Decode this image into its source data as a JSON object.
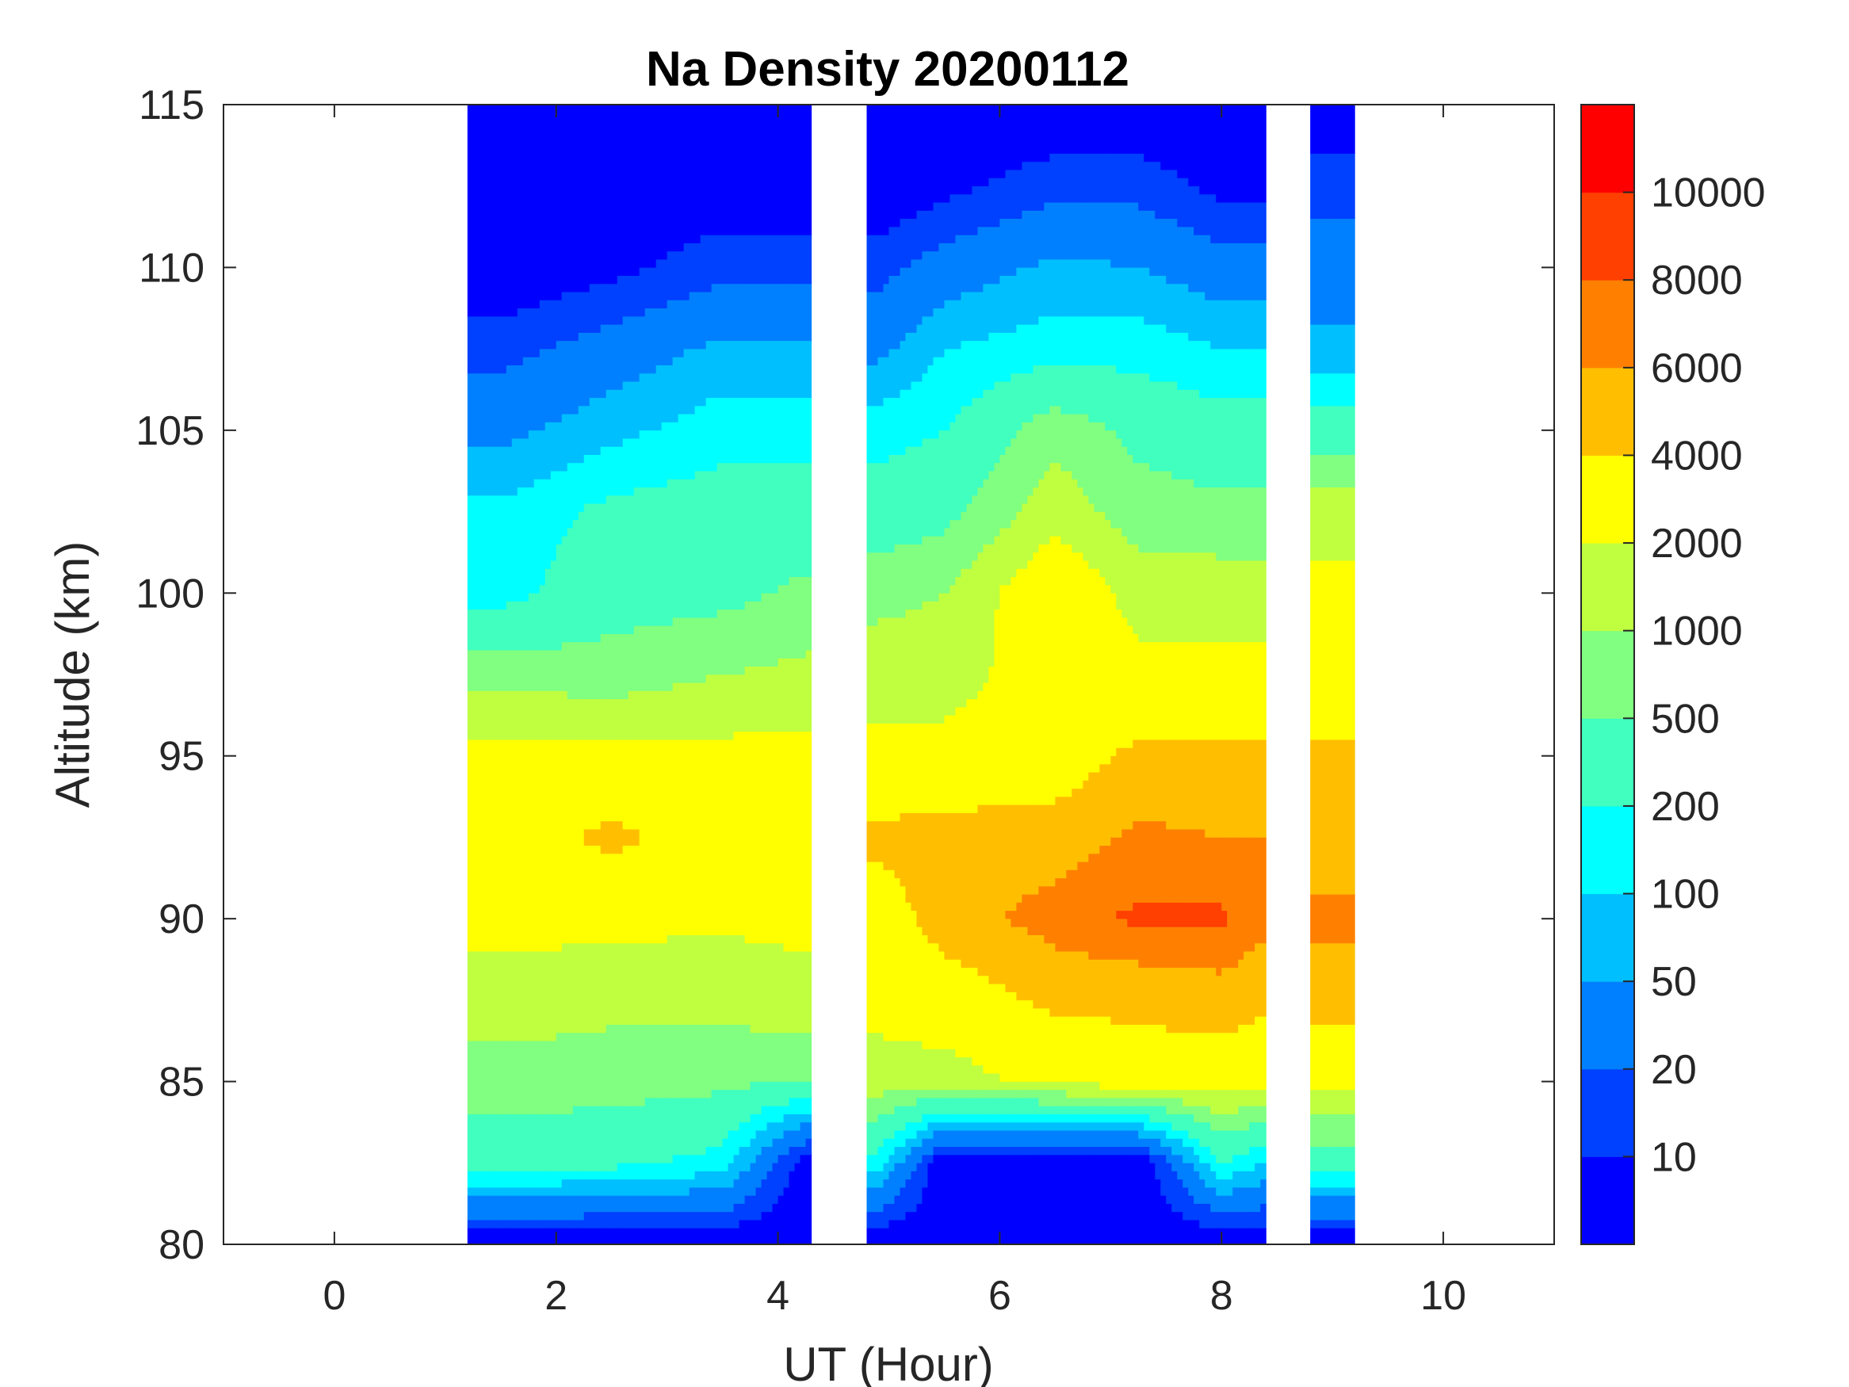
{
  "chart_data": {
    "type": "heatmap",
    "subtype": "filled-contour",
    "title": "Na Density 20200112",
    "xlabel": "UT (Hour)",
    "ylabel": "Altitude (km)",
    "xlim": [
      -1,
      11
    ],
    "ylim": [
      80,
      115
    ],
    "xticks": [
      0,
      2,
      4,
      6,
      8,
      10
    ],
    "yticks": [
      80,
      85,
      90,
      95,
      100,
      105,
      110,
      115
    ],
    "colorbar": {
      "levels": [
        10,
        20,
        50,
        100,
        200,
        500,
        1000,
        2000,
        4000,
        6000,
        8000,
        10000
      ],
      "tick_labels": [
        "10",
        "20",
        "50",
        "100",
        "200",
        "500",
        "1000",
        "2000",
        "4000",
        "6000",
        "8000",
        "10000"
      ],
      "colors": [
        "#0000FF",
        "#0040FF",
        "#0080FF",
        "#00BFFF",
        "#00FFFF",
        "#40FFBF",
        "#80FF80",
        "#BFFF40",
        "#FFFF00",
        "#FFBF00",
        "#FF8000",
        "#FF4000",
        "#FF0000"
      ]
    },
    "altitudes": [
      80,
      82.5,
      85,
      87.5,
      90,
      92.5,
      95,
      97.5,
      100,
      102.5,
      105,
      107.5,
      110,
      112.5,
      115
    ],
    "segments": [
      {
        "times": [
          1.2,
          1.5,
          2.5,
          3.5,
          4.3
        ],
        "density": [
          [
            5,
            300,
            700,
            1500,
            2500,
            3000,
            2500,
            800,
            150,
            120,
            40,
            15,
            5,
            5,
            5
          ],
          [
            5,
            300,
            700,
            1500,
            2500,
            3000,
            2500,
            800,
            150,
            120,
            40,
            15,
            5,
            5,
            5
          ],
          [
            5,
            250,
            700,
            1200,
            2500,
            4500,
            2500,
            700,
            350,
            250,
            80,
            30,
            8,
            5,
            5
          ],
          [
            5,
            150,
            600,
            1300,
            2200,
            3000,
            2500,
            1000,
            400,
            300,
            150,
            60,
            15,
            6,
            5
          ],
          [
            5,
            5,
            500,
            1500,
            2500,
            3000,
            2500,
            1200,
            600,
            300,
            150,
            60,
            15,
            5,
            5
          ]
        ]
      },
      {
        "times": [
          4.8,
          4.9,
          5.5,
          6.5,
          7.25,
          8.0,
          8.4
        ],
        "density": [
          [
            5,
            150,
            1500,
            2500,
            3000,
            4500,
            2500,
            1500,
            800,
            300,
            150,
            40,
            15,
            5,
            5
          ],
          [
            5,
            150,
            1500,
            2500,
            3000,
            4500,
            2500,
            1500,
            800,
            300,
            150,
            40,
            15,
            5,
            5
          ],
          [
            5,
            5,
            1500,
            3000,
            5000,
            5000,
            2500,
            1500,
            1000,
            400,
            200,
            100,
            30,
            8,
            5
          ],
          [
            5,
            5,
            2500,
            4500,
            7000,
            5000,
            3000,
            3000,
            4200,
            1500,
            800,
            150,
            60,
            15,
            5
          ],
          [
            5,
            5,
            3000,
            4500,
            8500,
            6500,
            4500,
            2500,
            1500,
            700,
            400,
            150,
            50,
            15,
            5
          ],
          [
            5,
            200,
            3000,
            5000,
            8500,
            6000,
            4500,
            2500,
            1500,
            600,
            300,
            100,
            30,
            8,
            5
          ],
          [
            5,
            100,
            2500,
            4500,
            6500,
            6000,
            4500,
            2500,
            1500,
            600,
            300,
            100,
            30,
            8,
            5
          ]
        ]
      },
      {
        "times": [
          8.8,
          9.0,
          9.2
        ],
        "density": [
          [
            5,
            300,
            2500,
            5000,
            6500,
            5000,
            4500,
            2500,
            2500,
            1500,
            300,
            60,
            30,
            15,
            5
          ],
          [
            5,
            300,
            2500,
            5000,
            6500,
            5000,
            4500,
            2500,
            2500,
            1500,
            300,
            60,
            30,
            15,
            5
          ],
          [
            5,
            300,
            2500,
            5000,
            6500,
            5000,
            4500,
            2500,
            2500,
            1500,
            300,
            60,
            30,
            15,
            5
          ]
        ]
      }
    ]
  }
}
